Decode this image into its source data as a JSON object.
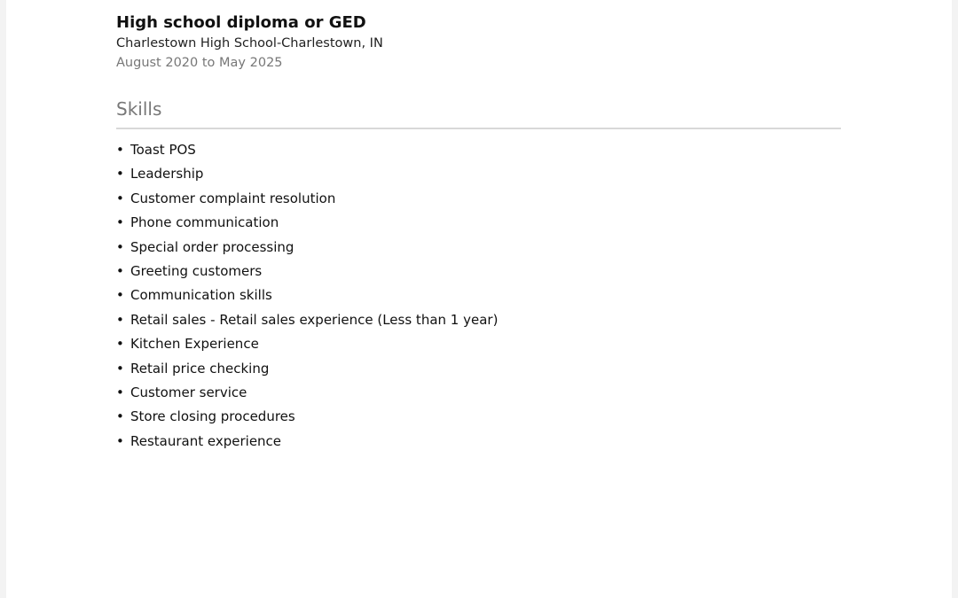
{
  "education": {
    "degree": "High school diploma or GED",
    "school": "Charlestown High School-Charlestown, IN",
    "dates": "August 2020 to May 2025"
  },
  "skills": {
    "title": "Skills",
    "bullet": "•",
    "items": [
      "Toast POS",
      "Leadership",
      "Customer complaint resolution",
      "Phone communication",
      "Special order processing",
      "Greeting customers",
      "Communication skills",
      "Retail sales - Retail sales experience (Less than 1 year)",
      "Kitchen Experience",
      "Retail price checking",
      "Customer service",
      "Store closing procedures",
      "Restaurant experience"
    ]
  }
}
